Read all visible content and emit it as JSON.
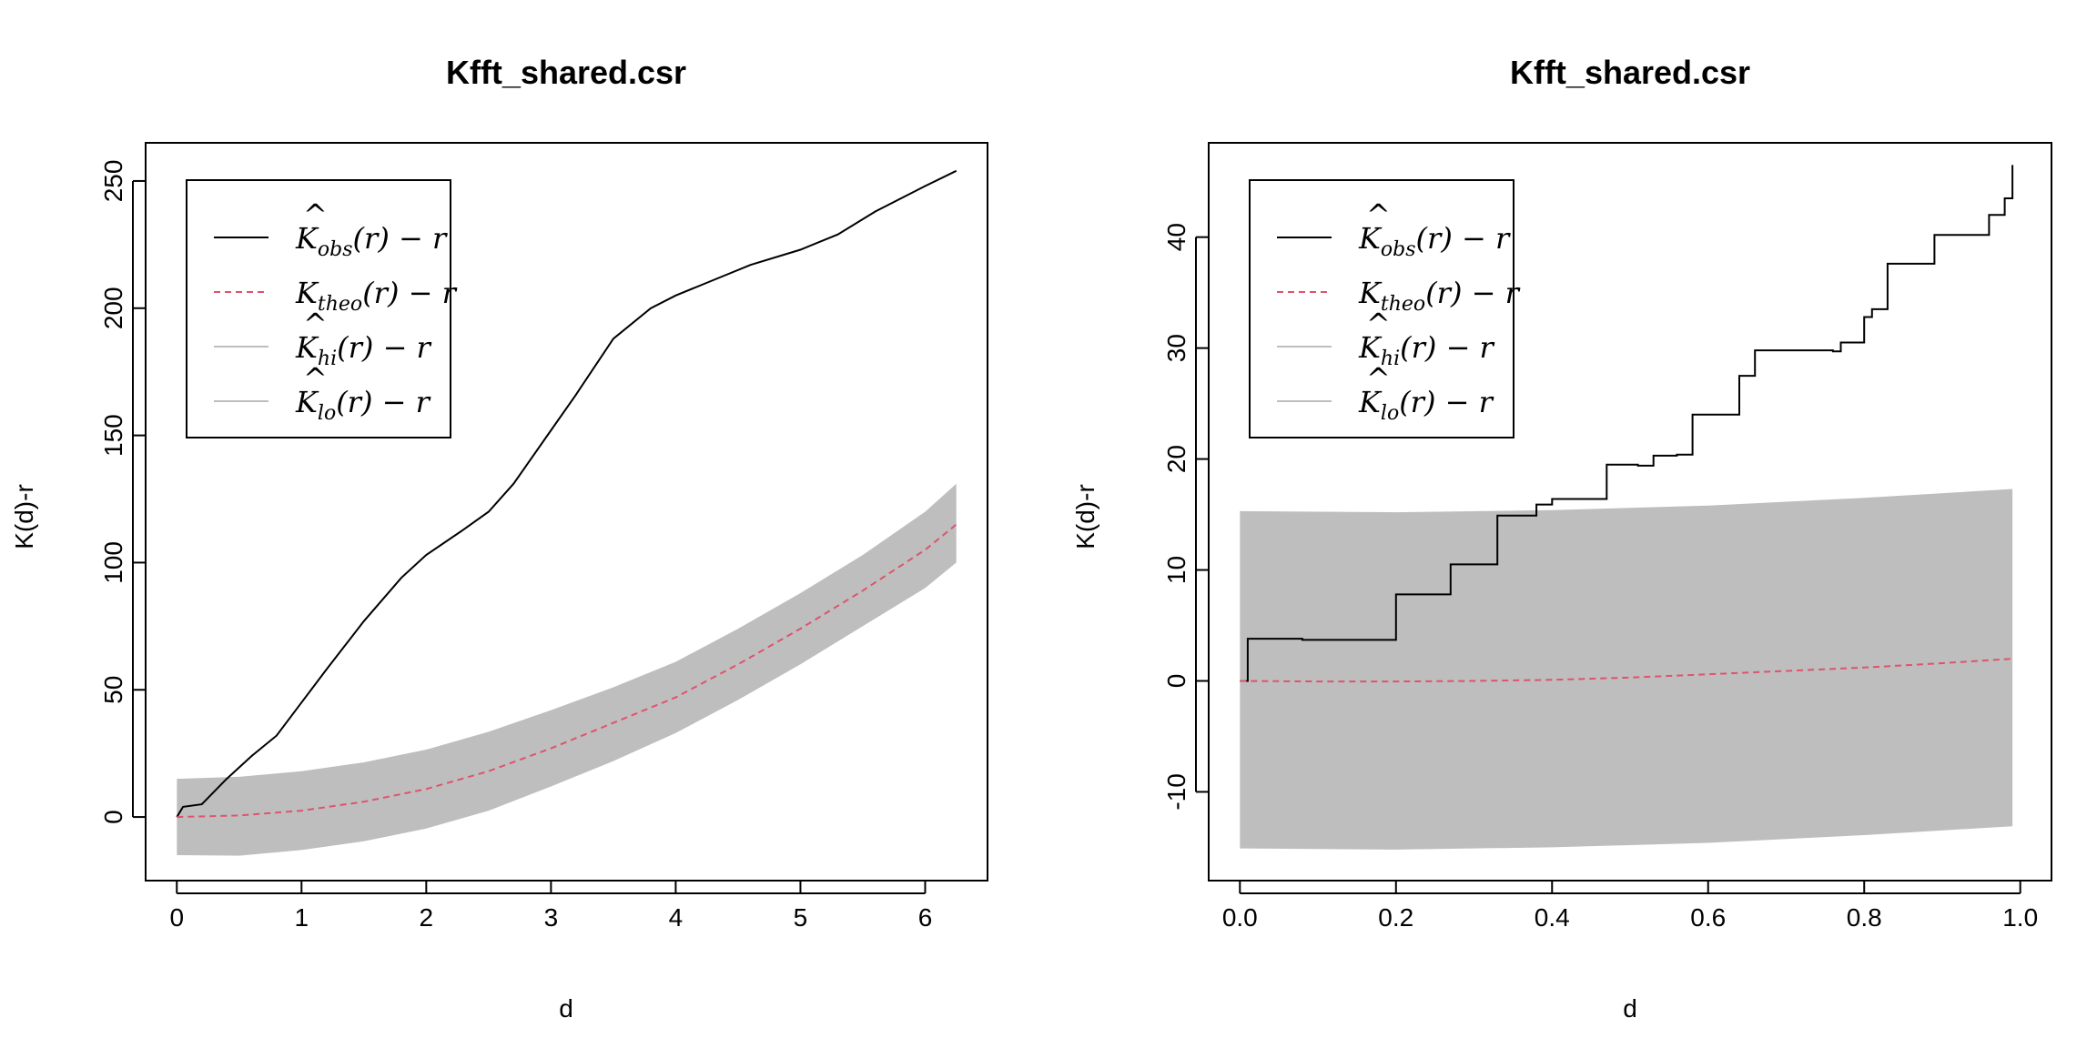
{
  "chart_data": [
    {
      "type": "line",
      "title": "Kfft_shared.csr",
      "xlabel": "d",
      "ylabel": "K(d)-r",
      "xlim": [
        -0.25,
        6.5
      ],
      "ylim": [
        -25,
        265
      ],
      "xticks": [
        "0",
        "1",
        "2",
        "3",
        "4",
        "5",
        "6"
      ],
      "yticks": [
        "0",
        "50",
        "100",
        "150",
        "200",
        "250"
      ],
      "legend_position": "top-left",
      "series": [
        {
          "name": "K̂obs(r) − r",
          "style": "solid",
          "color": "#000000",
          "x": [
            0,
            0.05,
            0.2,
            0.4,
            0.6,
            0.8,
            1.0,
            1.2,
            1.5,
            1.8,
            2.0,
            2.3,
            2.5,
            2.7,
            3.0,
            3.2,
            3.5,
            3.8,
            4.0,
            4.3,
            4.6,
            5.0,
            5.3,
            5.6,
            6.0,
            6.25
          ],
          "y": [
            0,
            4,
            5,
            15,
            24,
            32,
            45,
            58,
            77,
            94,
            103,
            113,
            120,
            131,
            152,
            166,
            188,
            200,
            205,
            211,
            217,
            223,
            229,
            238,
            248,
            254
          ]
        },
        {
          "name": "Ktheo(r) − r",
          "style": "dashed",
          "color": "#DF536B",
          "x": [
            0,
            0.5,
            1.0,
            1.5,
            2.0,
            2.5,
            3.0,
            3.5,
            4.0,
            4.5,
            5.0,
            5.5,
            6.0,
            6.25
          ],
          "y": [
            0,
            0.6,
            2.5,
            6,
            11,
            18,
            27,
            37,
            47,
            60,
            74,
            89,
            105,
            115
          ]
        }
      ],
      "envelope": {
        "name_hi": "K̂hi(r) − r",
        "name_lo": "K̂lo(r) − r",
        "color": "#BEBEBE",
        "x": [
          0,
          0.5,
          1.0,
          1.5,
          2.0,
          2.5,
          3.0,
          3.5,
          4.0,
          4.5,
          5.0,
          5.5,
          6.0,
          6.25
        ],
        "hi": [
          15,
          15.8,
          18,
          21.5,
          26.5,
          33.5,
          42,
          51,
          61,
          74,
          88,
          103,
          120,
          131
        ],
        "lo": [
          -15,
          -15.2,
          -13,
          -9.5,
          -4.5,
          2.5,
          12,
          22,
          33,
          46,
          60,
          75,
          90,
          100
        ]
      },
      "legend": [
        {
          "base": "K",
          "hat": true,
          "sub": "obs",
          "rest": "(r) − r",
          "kind": "line",
          "color": "#000000"
        },
        {
          "base": "K",
          "hat": false,
          "sub": "theo",
          "rest": "(r) − r",
          "kind": "dashed",
          "color": "#DF536B"
        },
        {
          "base": "K",
          "hat": true,
          "sub": "hi",
          "rest": "(r) − r",
          "kind": "line",
          "color": "#BEBEBE"
        },
        {
          "base": "K",
          "hat": true,
          "sub": "lo",
          "rest": "(r) − r",
          "kind": "line",
          "color": "#BEBEBE"
        }
      ]
    },
    {
      "type": "line",
      "title": "Kfft_shared.csr",
      "xlabel": "d",
      "ylabel": "K(d)-r",
      "xlim": [
        -0.04,
        1.04
      ],
      "ylim": [
        -18,
        48.5
      ],
      "xticks": [
        "0.0",
        "0.2",
        "0.4",
        "0.6",
        "0.8",
        "1.0"
      ],
      "yticks": [
        "-10",
        "0",
        "10",
        "20",
        "30",
        "40"
      ],
      "legend_position": "top-left",
      "series": [
        {
          "name": "K̂obs(r) − r",
          "style": "step",
          "color": "#000000",
          "x": [
            0,
            0.01,
            0.08,
            0.18,
            0.2,
            0.26,
            0.27,
            0.32,
            0.33,
            0.37,
            0.38,
            0.4,
            0.46,
            0.47,
            0.51,
            0.53,
            0.56,
            0.58,
            0.62,
            0.64,
            0.66,
            0.72,
            0.76,
            0.77,
            0.8,
            0.81,
            0.82,
            0.83,
            0.88,
            0.89,
            0.93,
            0.94,
            0.96,
            0.97,
            0.98,
            0.99
          ],
          "y": [
            0,
            3.8,
            3.7,
            3.7,
            7.8,
            7.8,
            10.5,
            10.5,
            14.9,
            14.9,
            15.9,
            16.4,
            16.4,
            19.5,
            19.4,
            20.3,
            20.4,
            24.0,
            24.0,
            27.5,
            29.8,
            29.8,
            29.7,
            30.5,
            32.8,
            33.5,
            33.5,
            37.6,
            37.6,
            40.2,
            40.2,
            40.2,
            42.0,
            42.0,
            43.5,
            46.5
          ]
        },
        {
          "name": "Ktheo(r) − r",
          "style": "dashed",
          "color": "#DF536B",
          "x": [
            0,
            0.1,
            0.2,
            0.3,
            0.4,
            0.5,
            0.6,
            0.7,
            0.8,
            0.9,
            0.99
          ],
          "y": [
            0,
            -0.05,
            -0.05,
            0,
            0.1,
            0.3,
            0.6,
            0.9,
            1.2,
            1.6,
            2.0
          ]
        }
      ],
      "envelope": {
        "name_hi": "K̂hi(r) − r",
        "name_lo": "K̂lo(r) − r",
        "color": "#BEBEBE",
        "x": [
          0,
          0.2,
          0.4,
          0.6,
          0.8,
          0.99
        ],
        "hi": [
          15.3,
          15.2,
          15.4,
          15.8,
          16.5,
          17.3
        ],
        "lo": [
          -15.1,
          -15.2,
          -15.0,
          -14.6,
          -13.9,
          -13.1
        ]
      },
      "legend": [
        {
          "base": "K",
          "hat": true,
          "sub": "obs",
          "rest": "(r) − r",
          "kind": "line",
          "color": "#000000"
        },
        {
          "base": "K",
          "hat": false,
          "sub": "theo",
          "rest": "(r) − r",
          "kind": "dashed",
          "color": "#DF536B"
        },
        {
          "base": "K",
          "hat": true,
          "sub": "hi",
          "rest": "(r) − r",
          "kind": "line",
          "color": "#BEBEBE"
        },
        {
          "base": "K",
          "hat": true,
          "sub": "lo",
          "rest": "(r) − r",
          "kind": "line",
          "color": "#BEBEBE"
        }
      ]
    }
  ]
}
